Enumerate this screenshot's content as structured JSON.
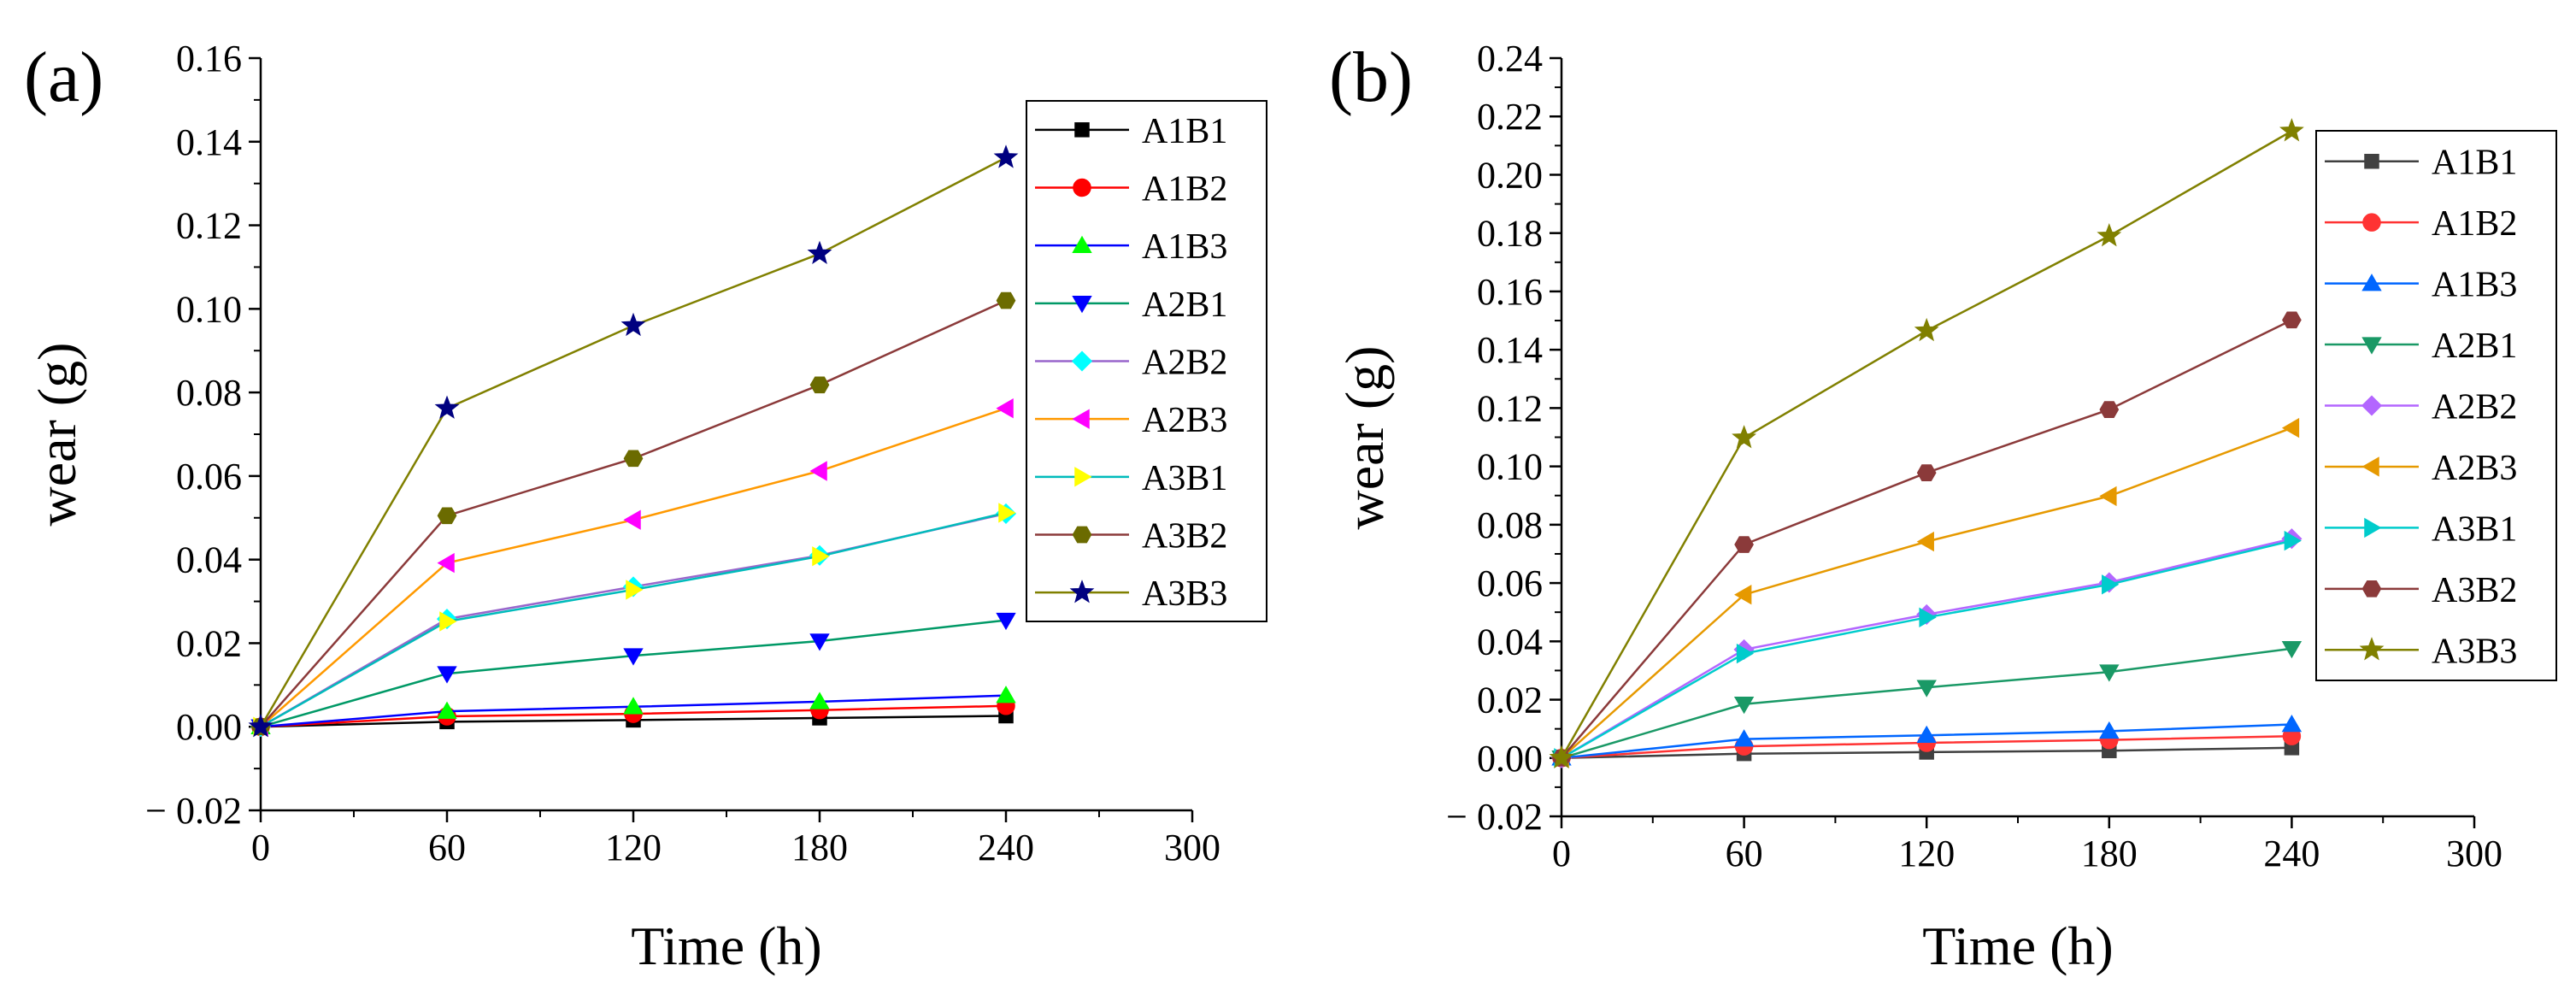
{
  "chart_data": [
    {
      "type": "line",
      "panel_label": "(a)",
      "xlabel": "Time (h)",
      "ylabel": "wear (g)",
      "xlim": [
        0,
        300
      ],
      "ylim": [
        -0.02,
        0.16
      ],
      "x_ticks": [
        0,
        60,
        120,
        180,
        240,
        300
      ],
      "x_tick_labels": [
        "0",
        "60",
        "120",
        "180",
        "240",
        "300"
      ],
      "y_ticks": [
        -0.02,
        0.0,
        0.02,
        0.04,
        0.06,
        0.08,
        0.1,
        0.12,
        0.14,
        0.16
      ],
      "y_tick_labels": [
        "− 0.02",
        "0.00",
        "0.02",
        "0.04",
        "0.06",
        "0.08",
        "0.10",
        "0.12",
        "0.14",
        "0.16"
      ],
      "grid": false,
      "legend_position": "top-right",
      "x": [
        0,
        60,
        120,
        180,
        240
      ],
      "series": [
        {
          "name": "A1B1",
          "color": "#000000",
          "marker": "square",
          "values": [
            0,
            0.0012,
            0.0016,
            0.0021,
            0.0026
          ]
        },
        {
          "name": "A1B2",
          "color": "#ff0000",
          "marker": "circle",
          "values": [
            0,
            0.0025,
            0.0031,
            0.004,
            0.005
          ]
        },
        {
          "name": "A1B3",
          "color": "#00ff00",
          "marker": "triangle-up",
          "values": [
            0,
            0.0037,
            0.0048,
            0.006,
            0.0075
          ]
        },
        {
          "name": "A2B1",
          "color": "#0000ff",
          "marker": "triangle-down",
          "values": [
            0,
            0.0127,
            0.017,
            0.0205,
            0.0255
          ]
        },
        {
          "name": "A2B2",
          "color": "#00ffff",
          "marker": "diamond",
          "values": [
            0,
            0.0258,
            0.0335,
            0.041,
            0.051
          ]
        },
        {
          "name": "A2B3",
          "color": "#ff00ff",
          "marker": "triangle-left",
          "values": [
            0,
            0.0392,
            0.0495,
            0.0612,
            0.0762
          ]
        },
        {
          "name": "A3B1",
          "color": "#ffff00",
          "marker": "triangle-right",
          "values": [
            0,
            0.0252,
            0.0328,
            0.0408,
            0.0512
          ]
        },
        {
          "name": "A3B2",
          "color": "#6b6b00",
          "marker": "hexagon",
          "values": [
            0,
            0.0505,
            0.0642,
            0.0818,
            0.102
          ]
        },
        {
          "name": "A3B3",
          "color": "#000080",
          "marker": "star",
          "values": [
            0,
            0.0762,
            0.096,
            0.1132,
            0.1362
          ]
        }
      ],
      "line_colors": {
        "A1B1": "#000000",
        "A1B2": "#ff0000",
        "A1B3": "#0000ff",
        "A2B1": "#009966",
        "A2B2": "#9966cc",
        "A2B3": "#ff9900",
        "A3B1": "#00bbbb",
        "A3B2": "#8b3a3a",
        "A3B3": "#808000"
      }
    },
    {
      "type": "line",
      "panel_label": "(b)",
      "xlabel": "Time (h)",
      "ylabel": "wear (g)",
      "xlim": [
        0,
        300
      ],
      "ylim": [
        -0.02,
        0.24
      ],
      "x_ticks": [
        0,
        60,
        120,
        180,
        240,
        300
      ],
      "x_tick_labels": [
        "0",
        "60",
        "120",
        "180",
        "240",
        "300"
      ],
      "y_ticks": [
        -0.02,
        0.0,
        0.02,
        0.04,
        0.06,
        0.08,
        0.1,
        0.12,
        0.14,
        0.16,
        0.18,
        0.2,
        0.22,
        0.24
      ],
      "y_tick_labels": [
        "− 0.02",
        "0.00",
        "0.02",
        "0.04",
        "0.06",
        "0.08",
        "0.10",
        "0.12",
        "0.14",
        "0.16",
        "0.18",
        "0.20",
        "0.22",
        "0.24"
      ],
      "grid": false,
      "legend_position": "top-right",
      "x": [
        0,
        60,
        120,
        180,
        240
      ],
      "series": [
        {
          "name": "A1B1",
          "color": "#404040",
          "marker": "square",
          "values": [
            0,
            0.0015,
            0.002,
            0.0025,
            0.0035
          ]
        },
        {
          "name": "A1B2",
          "color": "#ff3333",
          "marker": "circle",
          "values": [
            0,
            0.004,
            0.0052,
            0.0062,
            0.0075
          ]
        },
        {
          "name": "A1B3",
          "color": "#0066ff",
          "marker": "triangle-up",
          "values": [
            0,
            0.0065,
            0.0078,
            0.0092,
            0.0115
          ]
        },
        {
          "name": "A2B1",
          "color": "#1a9966",
          "marker": "triangle-down",
          "values": [
            0,
            0.0185,
            0.0242,
            0.0295,
            0.0375
          ]
        },
        {
          "name": "A2B2",
          "color": "#b366ff",
          "marker": "diamond",
          "values": [
            0,
            0.0372,
            0.0492,
            0.0602,
            0.0752
          ]
        },
        {
          "name": "A2B3",
          "color": "#e69900",
          "marker": "triangle-left",
          "values": [
            0,
            0.056,
            0.0742,
            0.0898,
            0.1132
          ]
        },
        {
          "name": "A3B1",
          "color": "#00cccc",
          "marker": "triangle-right",
          "values": [
            0,
            0.0358,
            0.0482,
            0.0595,
            0.0745
          ]
        },
        {
          "name": "A3B2",
          "color": "#8b3a3a",
          "marker": "hexagon",
          "values": [
            0,
            0.0732,
            0.0978,
            0.1195,
            0.1502
          ]
        },
        {
          "name": "A3B3",
          "color": "#808000",
          "marker": "star",
          "values": [
            0,
            0.1098,
            0.1465,
            0.179,
            0.215
          ]
        }
      ]
    }
  ]
}
